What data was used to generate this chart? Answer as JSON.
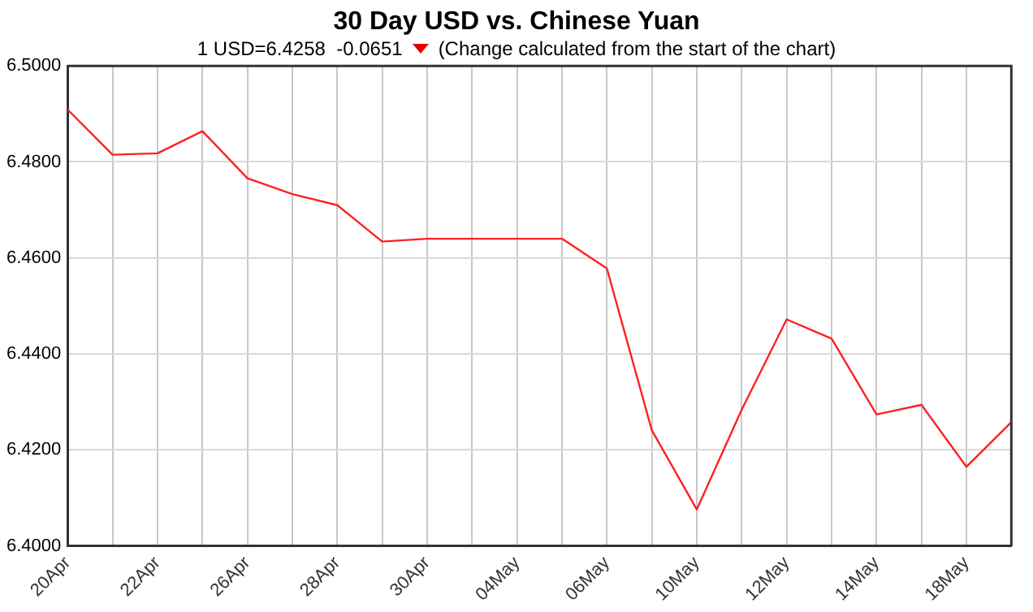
{
  "chart_data": {
    "type": "line",
    "title": "30 Day USD vs. Chinese Yuan",
    "subtitle": "1 USD=6.4258  -0.0651",
    "annotations": [
      "(Change calculated from the start of the chart)"
    ],
    "categories": [
      "20Apr",
      null,
      "22Apr",
      null,
      "26Apr",
      null,
      "28Apr",
      null,
      "30Apr",
      null,
      "04May",
      null,
      "06May",
      null,
      "10May",
      null,
      "12May",
      null,
      "14May",
      null,
      "18May",
      null
    ],
    "series": [
      {
        "color": "#ff2020",
        "values": [
          6.4909,
          6.4815,
          6.4818,
          6.4864,
          6.4766,
          6.4733,
          6.471,
          6.4634,
          6.464,
          6.464,
          6.464,
          6.464,
          6.4578,
          6.4241,
          6.4076,
          6.4284,
          6.4472,
          6.4432,
          6.4274,
          6.4294,
          6.4165,
          6.4258
        ]
      }
    ],
    "ylim": [
      6.4,
      6.5
    ],
    "yticks": [
      {
        "value": 6.4,
        "label": "6.4000"
      },
      {
        "value": 6.42,
        "label": "6.4200"
      },
      {
        "value": 6.44,
        "label": "6.4400"
      },
      {
        "value": 6.46,
        "label": "6.4600"
      },
      {
        "value": 6.48,
        "label": "6.4800"
      },
      {
        "value": 6.5,
        "label": "6.5000"
      }
    ],
    "grid": true,
    "legend": false,
    "marker": "none",
    "line_style": "solid"
  }
}
